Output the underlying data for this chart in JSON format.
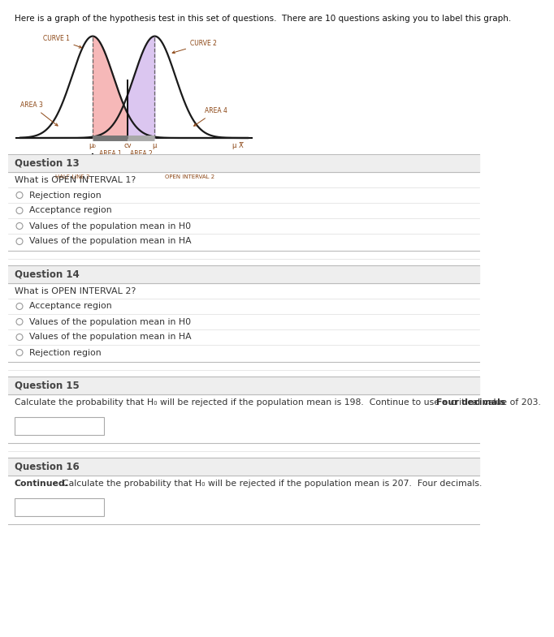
{
  "header_text": "Here is a graph of the hypothesis test in this set of questions.  There are 10 questions asking you to label this graph.",
  "curve1_mean": -1.5,
  "curve2_mean": 1.5,
  "curve_std": 1.0,
  "cv": 0.2,
  "background_color": "#ffffff",
  "curve_color": "#1a1a1a",
  "shaded_red": "#f4a0a0",
  "shaded_purple": "#c8a8e8",
  "label_color": "#8B4513",
  "q13_title": "Question 13",
  "q13_question": "What is OPEN INTERVAL 1?",
  "q13_options": [
    "Rejection region",
    "Acceptance region",
    "Values of the population mean in H0",
    "Values of the population mean in HA"
  ],
  "q14_title": "Question 14",
  "q14_question": "What is OPEN INTERVAL 2?",
  "q14_options": [
    "Acceptance region",
    "Values of the population mean in H0",
    "Values of the population mean in HA",
    "Rejection region"
  ],
  "q15_title": "Question 15",
  "q15_question": "Calculate the probability that H₀ will be rejected if the population mean is 198.  Continue to use a critical value of 203.  Four decimals",
  "q15_question_bold": "Four decimals",
  "q16_title": "Question 16",
  "q16_question_bold": "Continued.",
  "q16_question_rest": "  Calculate the probability that H₀ will be rejected if the population mean is 207.  Four decimals.",
  "section_bg": "#eeeeee",
  "option_separator": "#dddddd",
  "text_color": "#333333",
  "section_text_color": "#444444"
}
